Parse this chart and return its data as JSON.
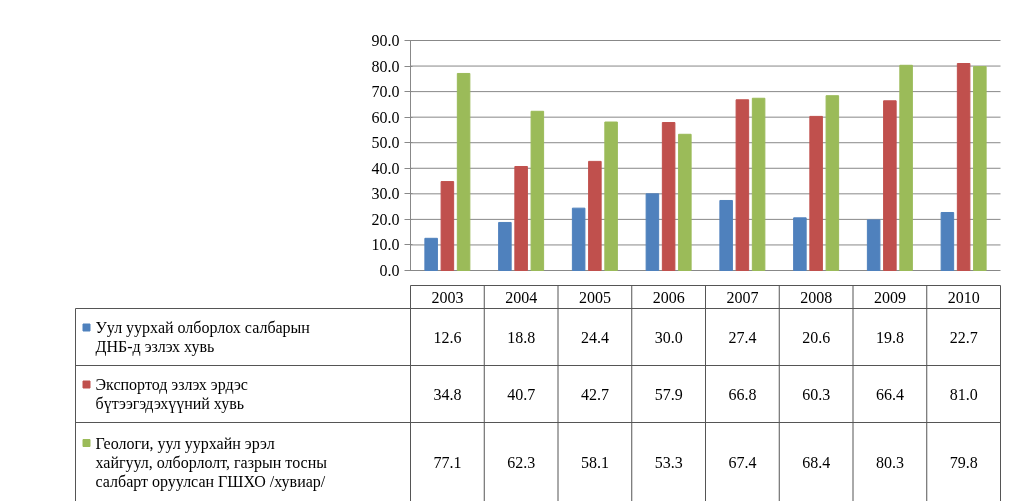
{
  "chart_data": {
    "type": "bar",
    "categories": [
      "2003",
      "2004",
      "2005",
      "2006",
      "2007",
      "2008",
      "2009",
      "2010"
    ],
    "series": [
      {
        "name": "Уул уурхай олборлох салбарын ДНБ-д эзлэх хувь",
        "color": "#4f81bd",
        "values": [
          12.6,
          18.8,
          24.4,
          30.0,
          27.4,
          20.6,
          19.8,
          22.7
        ],
        "value_labels": [
          "12.6",
          "18.8",
          "24.4",
          "30.0",
          "27.4",
          "20.6",
          "19.8",
          "22.7"
        ]
      },
      {
        "name": "Экспортод эзлэх эрдэс бүтээгэдэхүүний хувь",
        "color": "#c0504d",
        "values": [
          34.8,
          40.7,
          42.7,
          57.9,
          66.8,
          60.3,
          66.4,
          81.0
        ],
        "value_labels": [
          "34.8",
          "40.7",
          "42.7",
          "57.9",
          "66.8",
          "60.3",
          "66.4",
          "81.0"
        ]
      },
      {
        "name": "Геологи, уул уурхайн эрэл хайгуул,  олборлолт, газрын тосны салбарт оруулсан ГШХО /хувиар/",
        "color": "#9bbb59",
        "values": [
          77.1,
          62.3,
          58.1,
          53.3,
          67.4,
          68.4,
          80.3,
          79.8
        ],
        "value_labels": [
          "77.1",
          "62.3",
          "58.1",
          "53.3",
          "67.4",
          "68.4",
          "80.3",
          "79.8"
        ]
      }
    ],
    "ylim": [
      0,
      90
    ],
    "yticks": [
      {
        "value": 0,
        "label": "0.0"
      },
      {
        "value": 10,
        "label": "10.0"
      },
      {
        "value": 20,
        "label": "20.0"
      },
      {
        "value": 30,
        "label": "30.0"
      },
      {
        "value": 40,
        "label": "40.0"
      },
      {
        "value": 50,
        "label": "50.0"
      },
      {
        "value": 60,
        "label": "60.0"
      },
      {
        "value": 70,
        "label": "70.0"
      },
      {
        "value": 80,
        "label": "80.0"
      },
      {
        "value": 90,
        "label": "90.0"
      }
    ],
    "grid": "y",
    "legend": "bottom"
  }
}
